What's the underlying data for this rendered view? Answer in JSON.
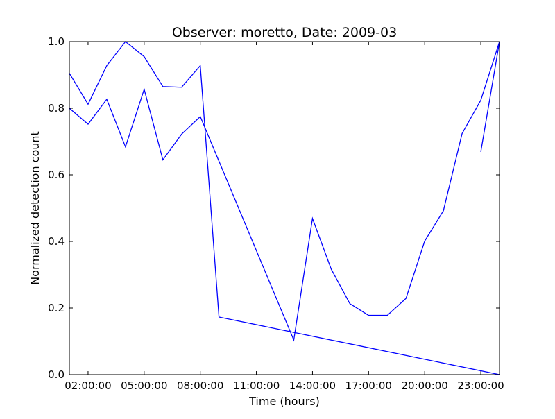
{
  "chart_data": {
    "type": "line",
    "title": "Observer: moretto, Date: 2009-03",
    "xlabel": "Time (hours)",
    "ylabel": "Normalized detection count",
    "xlim": [
      1,
      24
    ],
    "ylim": [
      0,
      1
    ],
    "x_ticks": [
      {
        "value": 2,
        "label": "02:00:00"
      },
      {
        "value": 5,
        "label": "05:00:00"
      },
      {
        "value": 8,
        "label": "08:00:00"
      },
      {
        "value": 11,
        "label": "11:00:00"
      },
      {
        "value": 14,
        "label": "14:00:00"
      },
      {
        "value": 17,
        "label": "17:00:00"
      },
      {
        "value": 20,
        "label": "20:00:00"
      },
      {
        "value": 23,
        "label": "23:00:00"
      }
    ],
    "y_ticks": [
      {
        "value": 0,
        "label": "0.0"
      },
      {
        "value": 0.2,
        "label": "0.2"
      },
      {
        "value": 0.4,
        "label": "0.4"
      },
      {
        "value": 0.6,
        "label": "0.6"
      },
      {
        "value": 0.8,
        "label": "0.8"
      },
      {
        "value": 1.0,
        "label": "1.0"
      }
    ],
    "grid": false,
    "series": [
      {
        "color": "#0000ff",
        "points": [
          [
            1,
            0.905
          ],
          [
            2,
            0.812
          ],
          [
            3,
            0.928
          ],
          [
            4,
            1.0
          ],
          [
            5,
            0.955
          ],
          [
            6,
            0.865
          ],
          [
            7,
            0.863
          ],
          [
            8,
            0.928
          ],
          [
            9,
            0.173
          ],
          [
            24,
            0.0
          ]
        ]
      },
      {
        "color": "#0000ff",
        "points": [
          [
            1,
            0.8
          ],
          [
            2,
            0.752
          ],
          [
            3,
            0.827
          ],
          [
            4,
            0.684
          ],
          [
            5,
            0.857
          ],
          [
            6,
            0.645
          ],
          [
            7,
            0.722
          ],
          [
            8,
            0.775
          ],
          [
            13,
            0.104
          ],
          [
            14,
            0.469
          ],
          [
            15,
            0.317
          ],
          [
            16,
            0.213
          ],
          [
            17,
            0.178
          ],
          [
            18,
            0.178
          ],
          [
            19,
            0.229
          ],
          [
            20,
            0.401
          ],
          [
            21,
            0.492
          ],
          [
            22,
            0.724
          ],
          [
            23,
            0.824
          ],
          [
            24,
            1.0
          ]
        ]
      },
      {
        "color": "#0000ff",
        "points": [
          [
            23,
            0.669
          ],
          [
            24,
            1.0
          ]
        ]
      }
    ]
  }
}
